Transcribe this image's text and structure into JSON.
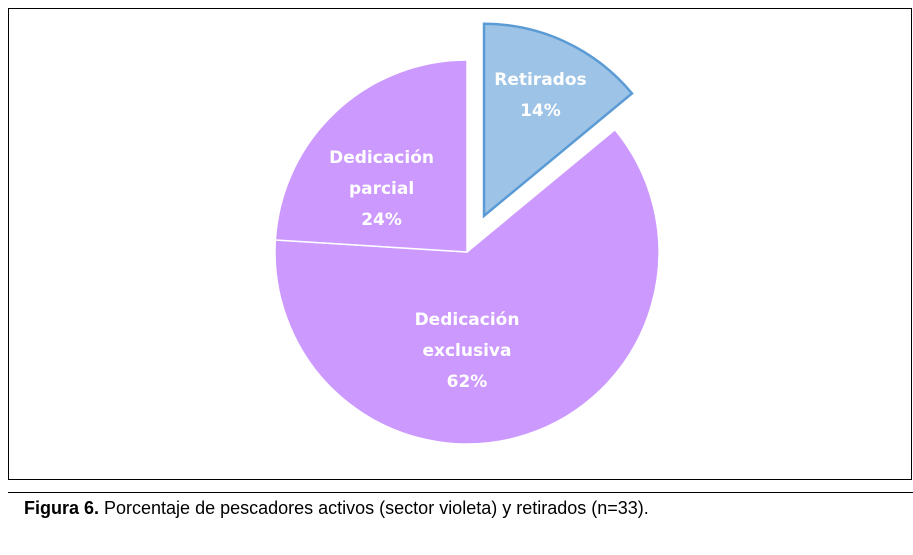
{
  "chart_data": {
    "type": "pie",
    "categories": [
      "Retirados",
      "Dedicación exclusiva",
      "Dedicación parcial"
    ],
    "values": [
      14,
      62,
      24
    ],
    "value_labels": [
      "14%",
      "62%",
      "24%"
    ],
    "colors": [
      "#9dc3e6",
      "#cc99ff",
      "#cc99ff"
    ],
    "exploded": [
      true,
      false,
      false
    ]
  },
  "caption": {
    "label": "Figura 6.",
    "text": " Porcentaje de pescadores activos (sector violeta) y retirados (n=33)."
  }
}
